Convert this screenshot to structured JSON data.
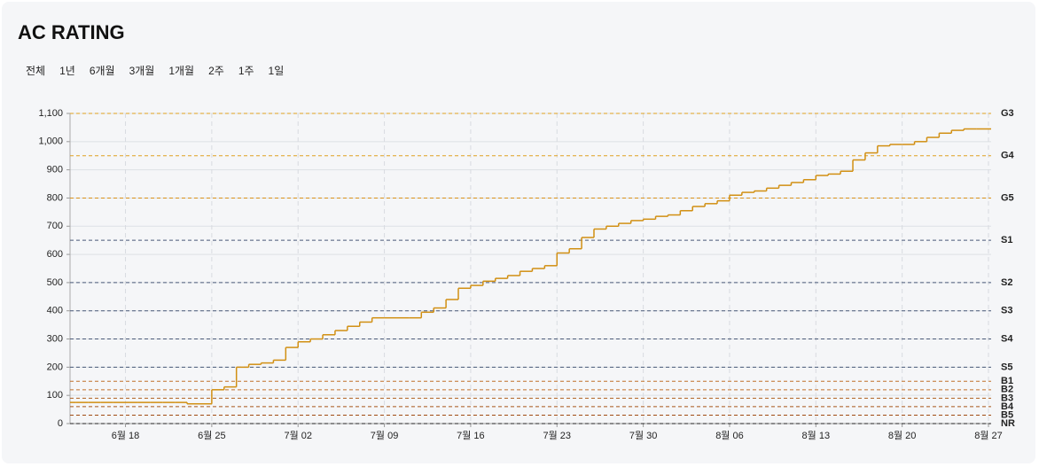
{
  "range_options": [
    "전체",
    "1년",
    "6개월",
    "3개월",
    "1개월",
    "2주",
    "1주",
    "1일"
  ],
  "chart_data": {
    "type": "line",
    "step": "after",
    "title": "AC RATING",
    "color": "#d18f12",
    "x": [
      "06-13",
      "06-14",
      "06-15",
      "06-16",
      "06-17",
      "06-18",
      "06-19",
      "06-20",
      "06-21",
      "06-22",
      "06-23",
      "06-24",
      "06-25",
      "06-26",
      "06-27",
      "06-28",
      "06-29",
      "06-30",
      "07-01",
      "07-02",
      "07-03",
      "07-04",
      "07-05",
      "07-06",
      "07-07",
      "07-08",
      "07-09",
      "07-10",
      "07-11",
      "07-12",
      "07-13",
      "07-14",
      "07-15",
      "07-16",
      "07-17",
      "07-18",
      "07-19",
      "07-20",
      "07-21",
      "07-22",
      "07-23",
      "07-24",
      "07-25",
      "07-26",
      "07-27",
      "07-28",
      "07-29",
      "07-30",
      "07-31",
      "08-01",
      "08-02",
      "08-03",
      "08-04",
      "08-05",
      "08-06",
      "08-07",
      "08-08",
      "08-09",
      "08-10",
      "08-11",
      "08-12",
      "08-13",
      "08-14",
      "08-15",
      "08-16",
      "08-17",
      "08-18",
      "08-19",
      "08-20",
      "08-21",
      "08-22",
      "08-23",
      "08-24",
      "08-25",
      "08-26",
      "08-27"
    ],
    "values": [
      75,
      75,
      75,
      75,
      75,
      75,
      75,
      75,
      75,
      75,
      70,
      70,
      120,
      130,
      200,
      210,
      215,
      225,
      270,
      290,
      300,
      315,
      330,
      345,
      360,
      375,
      375,
      375,
      375,
      395,
      410,
      440,
      480,
      490,
      505,
      515,
      525,
      540,
      550,
      560,
      605,
      620,
      660,
      690,
      700,
      710,
      720,
      725,
      735,
      740,
      755,
      770,
      780,
      790,
      810,
      820,
      825,
      835,
      845,
      855,
      865,
      880,
      885,
      895,
      935,
      960,
      985,
      990,
      990,
      1000,
      1015,
      1030,
      1040,
      1045,
      1045,
      1045
    ],
    "xlim": [
      "06-13",
      "08-27"
    ],
    "xticks": [
      {
        "value": "06-18",
        "label": "6월 18"
      },
      {
        "value": "06-25",
        "label": "6월 25"
      },
      {
        "value": "07-02",
        "label": "7월 02"
      },
      {
        "value": "07-09",
        "label": "7월 09"
      },
      {
        "value": "07-16",
        "label": "7월 16"
      },
      {
        "value": "07-23",
        "label": "7월 23"
      },
      {
        "value": "07-30",
        "label": "7월 30"
      },
      {
        "value": "08-06",
        "label": "8월 06"
      },
      {
        "value": "08-13",
        "label": "8월 13"
      },
      {
        "value": "08-20",
        "label": "8월 20"
      },
      {
        "value": "08-27",
        "label": "8월 27"
      }
    ],
    "ylim": [
      0,
      1100
    ],
    "yticks": [
      0,
      100,
      200,
      300,
      400,
      500,
      600,
      700,
      800,
      900,
      {
        "value": 1000,
        "label": "1,000"
      },
      {
        "value": 1100,
        "label": "1,100"
      }
    ],
    "grid": true,
    "reference_lines": [
      {
        "label": "G3",
        "value": 1100,
        "color": "#e0a020"
      },
      {
        "label": "G4",
        "value": 950,
        "color": "#e0a020"
      },
      {
        "label": "G5",
        "value": 800,
        "color": "#d9901a"
      },
      {
        "label": "S1",
        "value": 650,
        "color": "#4a5a78"
      },
      {
        "label": "S2",
        "value": 500,
        "color": "#4a5a78"
      },
      {
        "label": "S3",
        "value": 400,
        "color": "#4a5a78"
      },
      {
        "label": "S4",
        "value": 300,
        "color": "#4a5a78"
      },
      {
        "label": "S5",
        "value": 200,
        "color": "#4a5a78"
      },
      {
        "label": "B1",
        "value": 150,
        "color": "#c0702a"
      },
      {
        "label": "B2",
        "value": 120,
        "color": "#c0702a"
      },
      {
        "label": "B3",
        "value": 90,
        "color": "#b0601f"
      },
      {
        "label": "B4",
        "value": 60,
        "color": "#a85518"
      },
      {
        "label": "B5",
        "value": 30,
        "color": "#a04a12"
      },
      {
        "label": "NR",
        "value": 0,
        "color": "#222222"
      }
    ]
  }
}
